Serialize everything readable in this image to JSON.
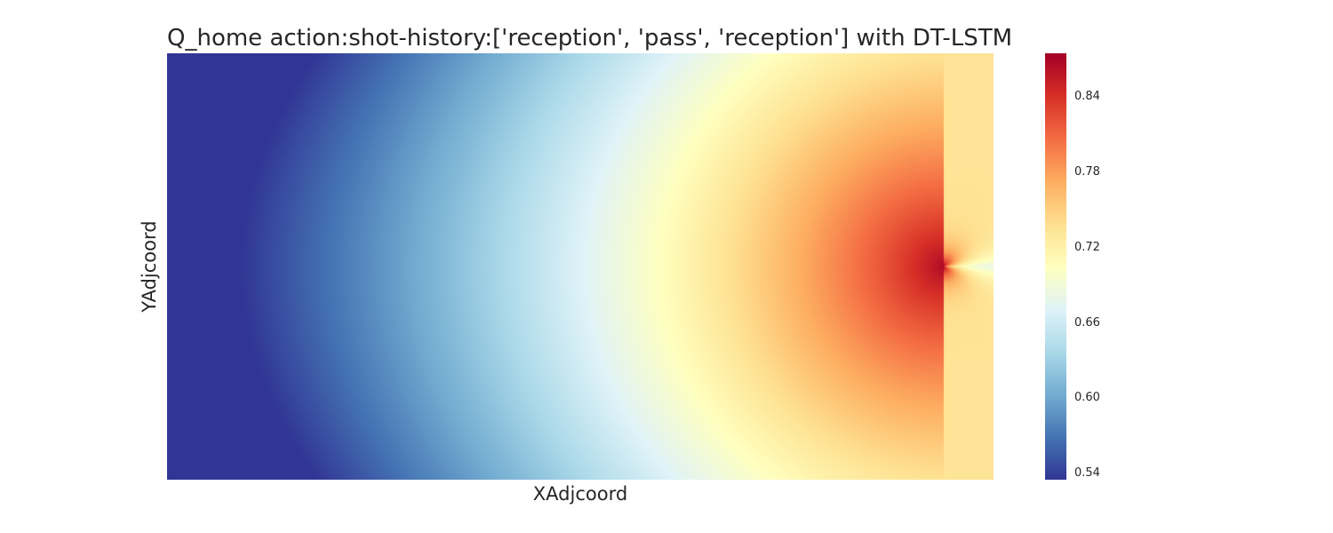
{
  "chart_data": {
    "type": "heatmap",
    "title": "Q_home action:shot-history:['reception', 'pass', 'reception'] with DT-LSTM",
    "xlabel": "XAdjcoord",
    "ylabel": "YAdjcoord",
    "colormap": "RdYlBu_r",
    "colormap_stops": [
      "#313695",
      "#4575b4",
      "#74add1",
      "#abd9e9",
      "#e0f3f8",
      "#ffffbf",
      "#fee090",
      "#fdae61",
      "#f46d43",
      "#d73027",
      "#a50026"
    ],
    "vmin": 0.535,
    "vmax": 0.875,
    "colorbar_ticks": [
      "0.54",
      "0.60",
      "0.66",
      "0.72",
      "0.78",
      "0.84"
    ],
    "colorbar_tick_values": [
      0.54,
      0.6,
      0.66,
      0.72,
      0.78,
      0.84
    ],
    "grid": false,
    "x_range": [
      0,
      1
    ],
    "y_range": [
      0,
      1
    ],
    "peak": {
      "x": 0.94,
      "y": 0.5,
      "value": 0.87
    },
    "field_samples": {
      "rows_y": [
        0.0,
        0.25,
        0.5,
        0.75,
        1.0
      ],
      "cols_x": [
        0.0,
        0.25,
        0.5,
        0.7,
        0.85,
        0.92,
        0.94,
        1.0
      ],
      "values": [
        [
          0.55,
          0.6,
          0.66,
          0.71,
          0.74,
          0.74,
          0.73,
          0.73
        ],
        [
          0.56,
          0.62,
          0.69,
          0.74,
          0.77,
          0.76,
          0.75,
          0.73
        ],
        [
          0.57,
          0.63,
          0.7,
          0.75,
          0.8,
          0.84,
          0.87,
          0.68
        ],
        [
          0.56,
          0.61,
          0.68,
          0.73,
          0.76,
          0.76,
          0.75,
          0.73
        ],
        [
          0.54,
          0.59,
          0.66,
          0.71,
          0.74,
          0.74,
          0.73,
          0.73
        ]
      ]
    }
  }
}
